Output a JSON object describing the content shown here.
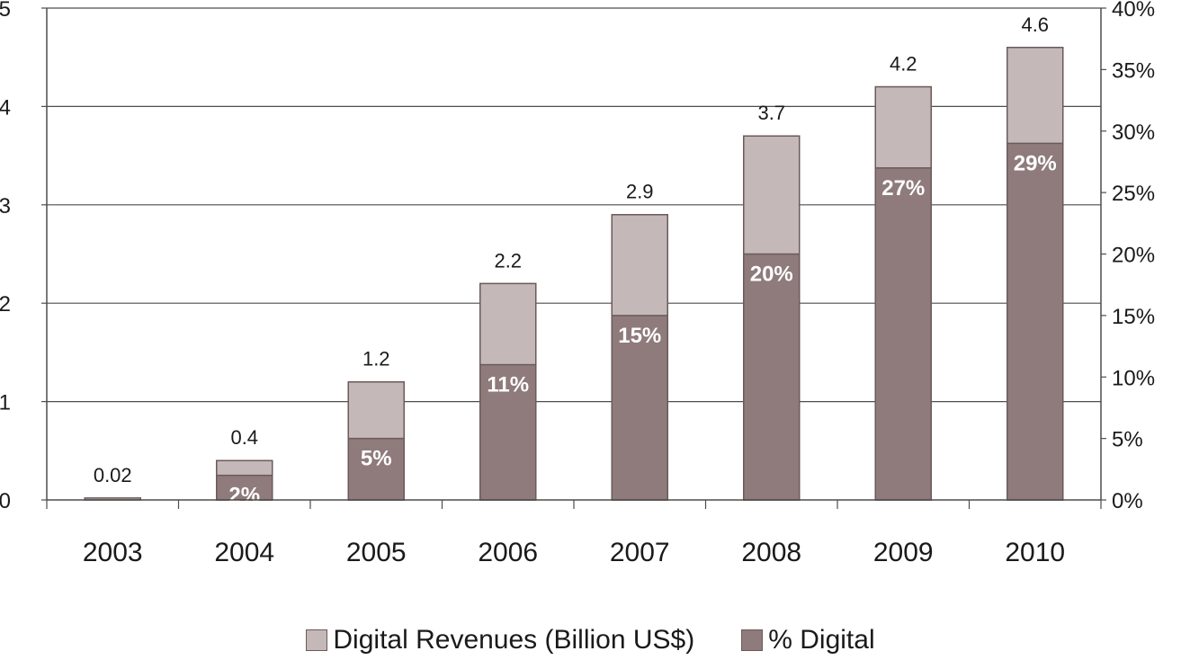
{
  "chart_data": {
    "type": "bar",
    "categories": [
      "2003",
      "2004",
      "2005",
      "2006",
      "2007",
      "2008",
      "2009",
      "2010"
    ],
    "series": [
      {
        "name": "Digital Revenues (Billion US$)",
        "values": [
          0.02,
          0.4,
          1.2,
          2.2,
          2.9,
          3.7,
          4.2,
          4.6
        ],
        "value_labels": [
          "0.02",
          "0.4",
          "1.2",
          "2.2",
          "2.9",
          "3.7",
          "4.2",
          "4.6"
        ],
        "axis": "left",
        "color": "#c4b8b8"
      },
      {
        "name": "% Digital",
        "values": [
          null,
          2,
          5,
          11,
          15,
          20,
          27,
          29
        ],
        "value_labels": [
          "",
          "2%",
          "5%",
          "11%",
          "15%",
          "20%",
          "27%",
          "29%"
        ],
        "axis": "right",
        "color": "#8f7b7b"
      }
    ],
    "y_left": {
      "min": 0,
      "max": 5,
      "ticks": [
        "0",
        "1",
        "2",
        "3",
        "4",
        "5"
      ]
    },
    "y_right": {
      "min": 0,
      "max": 40,
      "ticks": [
        "0%",
        "5%",
        "10%",
        "15%",
        "20%",
        "25%",
        "30%",
        "35%",
        "40%"
      ]
    },
    "grid": "horizontal",
    "legend_position": "bottom"
  }
}
